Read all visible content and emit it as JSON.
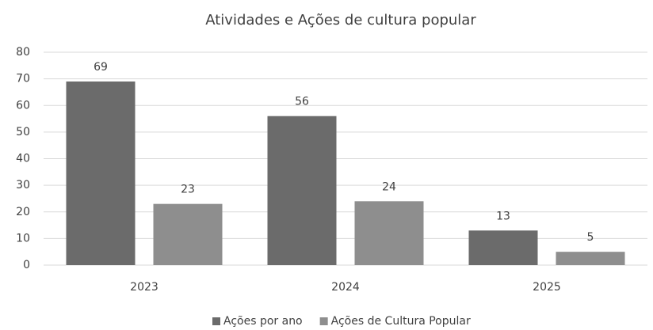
{
  "chart_data": {
    "type": "bar",
    "title": "Atividades e Ações de cultura popular",
    "categories": [
      "2023",
      "2024",
      "2025"
    ],
    "series": [
      {
        "name": "Ações por ano",
        "color": "#6b6b6b",
        "values": [
          69,
          56,
          13
        ]
      },
      {
        "name": "Ações de Cultura Popular",
        "color": "#8e8e8e",
        "values": [
          23,
          24,
          5
        ]
      }
    ],
    "ylim": [
      0,
      80
    ],
    "yticks": [
      0,
      10,
      20,
      30,
      40,
      50,
      60,
      70,
      80
    ],
    "grid": true,
    "legend": "bottom"
  }
}
